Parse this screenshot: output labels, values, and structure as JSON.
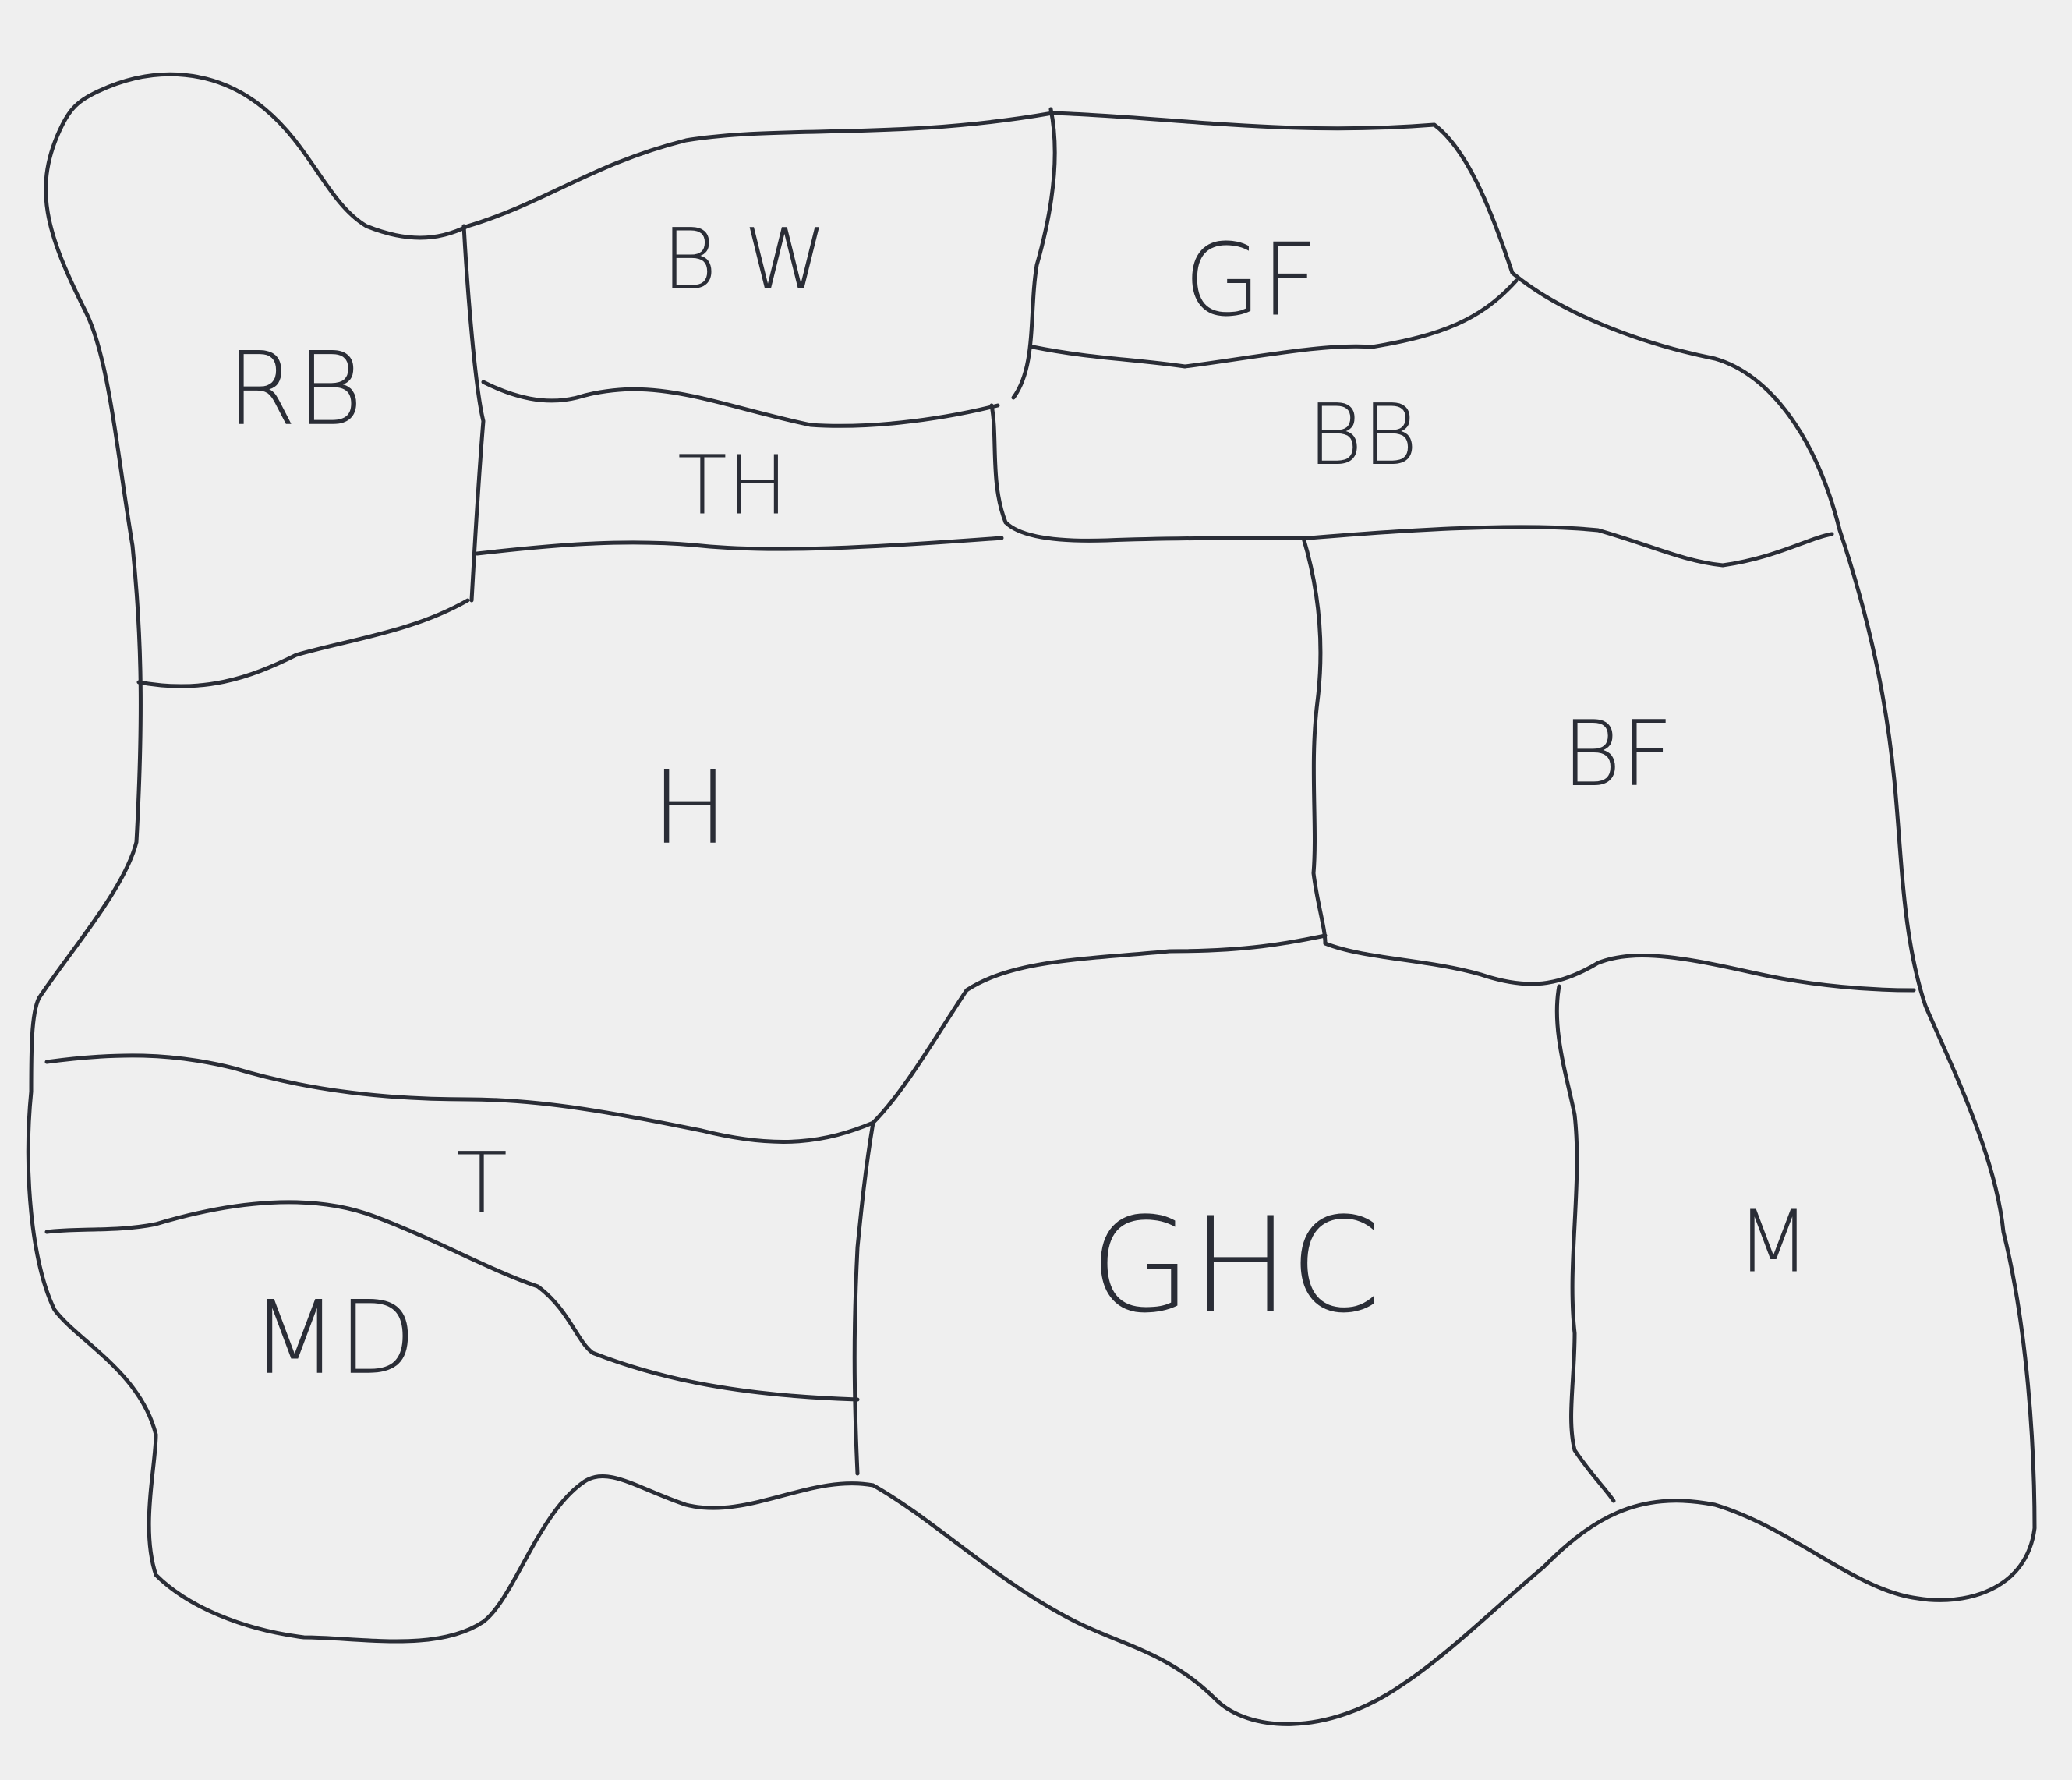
{
  "map": {
    "colors": {
      "paper": "#efefef",
      "ink": "#2a2d36"
    },
    "regions": [
      {
        "id": "rb",
        "label": "RB"
      },
      {
        "id": "bw",
        "label": "B W"
      },
      {
        "id": "gf",
        "label": "GF"
      },
      {
        "id": "th",
        "label": "TH"
      },
      {
        "id": "bb",
        "label": "BB"
      },
      {
        "id": "h",
        "label": "H"
      },
      {
        "id": "bf",
        "label": "BF"
      },
      {
        "id": "t",
        "label": "T"
      },
      {
        "id": "md",
        "label": "MD"
      },
      {
        "id": "ghc",
        "label": "GHC"
      },
      {
        "id": "m",
        "label": "M"
      }
    ]
  }
}
